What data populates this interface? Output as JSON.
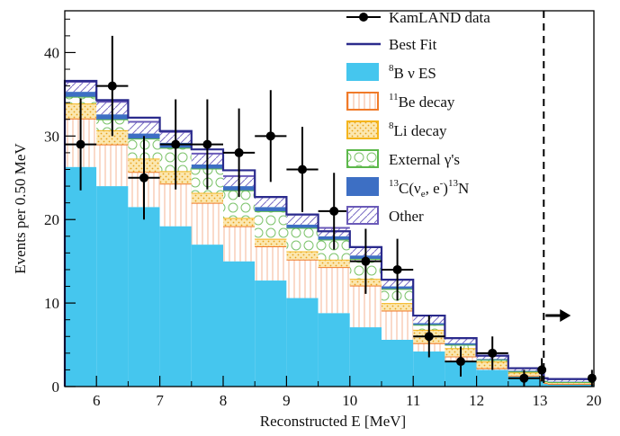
{
  "chart_data": {
    "type": "bar",
    "xlabel": "Reconstructed E [MeV]",
    "ylabel": "Events per 0.50 MeV",
    "xlim": [
      5.5,
      20
    ],
    "ylim": [
      0,
      45
    ],
    "xticks": [
      6,
      7,
      8,
      9,
      10,
      11,
      12,
      13,
      20
    ],
    "yticks": [
      0,
      10,
      20,
      30,
      40
    ],
    "bin_low_edges": [
      5.5,
      6.0,
      6.5,
      7.0,
      7.5,
      8.0,
      8.5,
      9.0,
      9.5,
      10.0,
      10.5,
      11.0,
      11.5,
      12.0,
      12.5,
      13.0,
      13.5,
      14.0
    ],
    "bin_high_edge": 20,
    "series": [
      {
        "name": "⁸B ν ES",
        "color": "#45c6ee",
        "values": [
          26.3,
          24.0,
          21.5,
          19.2,
          17.0,
          15.0,
          12.7,
          10.6,
          8.8,
          7.1,
          5.6,
          4.2,
          3.0,
          2.0,
          1.2,
          0.7,
          0.4,
          0.3
        ]
      },
      {
        "name": "¹¹Be decay",
        "color": "#f07a28",
        "values": [
          5.8,
          5.0,
          4.2,
          5.1,
          5.0,
          4.2,
          4.1,
          4.6,
          5.5,
          5.0,
          3.5,
          1.0,
          0.6,
          0.2,
          0.1,
          0.05,
          0.02,
          0.02
        ]
      },
      {
        "name": "⁸Li decay",
        "color": "#f5b51d",
        "values": [
          1.8,
          1.7,
          1.6,
          1.5,
          1.2,
          1.0,
          0.9,
          1.0,
          0.9,
          0.8,
          0.9,
          1.6,
          1.0,
          0.8,
          0.4,
          0.3,
          0.2,
          0.2
        ]
      },
      {
        "name": "External γ's",
        "color": "#5cb84b",
        "values": [
          0.8,
          1.3,
          2.4,
          2.8,
          2.9,
          3.3,
          3.3,
          2.8,
          2.4,
          2.4,
          1.7,
          0.6,
          0.4,
          0.2,
          0.1,
          0.05,
          0.02,
          0.02
        ]
      },
      {
        "name": "¹³C(νₑ, e⁻)¹³N",
        "color": "#3d6fc4",
        "values": [
          0.6,
          0.6,
          0.6,
          0.6,
          0.5,
          0.5,
          0.5,
          0.4,
          0.4,
          0.4,
          0.3,
          0.2,
          0.2,
          0.1,
          0.1,
          0.05,
          0.05,
          0.05
        ]
      },
      {
        "name": "Other",
        "color": "#6a5ab8",
        "values": [
          1.2,
          1.5,
          1.4,
          1.3,
          1.3,
          1.2,
          1.2,
          1.2,
          1.0,
          1.0,
          0.8,
          0.9,
          0.6,
          0.4,
          0.3,
          0.4,
          0.3,
          0.3
        ]
      }
    ],
    "best_fit": {
      "name": "Best Fit",
      "color": "#2a2a8c",
      "values": [
        36.6,
        34.3,
        32.2,
        30.6,
        28.4,
        25.9,
        22.7,
        20.6,
        18.6,
        16.7,
        12.8,
        8.5,
        5.8,
        3.7,
        2.2,
        1.6,
        1.0,
        0.9
      ]
    },
    "data": {
      "name": "KamLAND data",
      "x": [
        5.75,
        6.25,
        6.75,
        7.25,
        7.75,
        8.25,
        8.75,
        9.25,
        9.75,
        10.25,
        10.75,
        11.25,
        11.75,
        12.25,
        12.75,
        13.25,
        19.75
      ],
      "y": [
        29,
        36,
        25,
        29,
        29,
        28,
        30,
        26,
        21,
        15,
        14,
        6,
        3,
        4,
        1,
        2,
        1
      ],
      "yerr": [
        5.5,
        6.0,
        5.0,
        5.4,
        5.4,
        5.3,
        5.5,
        5.1,
        4.6,
        3.9,
        3.7,
        2.5,
        1.8,
        2.0,
        1.0,
        1.4,
        1.0
      ]
    },
    "cut_line_x": 13.5,
    "legend": [
      "KamLAND data",
      "Best Fit",
      "⁸B ν ES",
      "¹¹Be decay",
      "⁸Li decay",
      "External γ's",
      "¹³C(νₑ, e⁻)¹³N",
      "Other"
    ],
    "legend_position": "top-right",
    "grid": false
  },
  "legend_labels": {
    "data": "KamLAND data",
    "best_fit": "Best Fit",
    "b8_sup": "8",
    "b8_main": "B ν ES",
    "be11_sup": "11",
    "be11_main": "Be decay",
    "li8_sup": "8",
    "li8_main": "Li decay",
    "ext": "External γ's",
    "c13_sup1": "13",
    "c13_a": "C(ν",
    "c13_sub": "e",
    "c13_b": ", e",
    "c13_sup2": "-",
    "c13_c": ")",
    "c13_sup3": "13",
    "c13_d": "N",
    "other": "Other"
  }
}
